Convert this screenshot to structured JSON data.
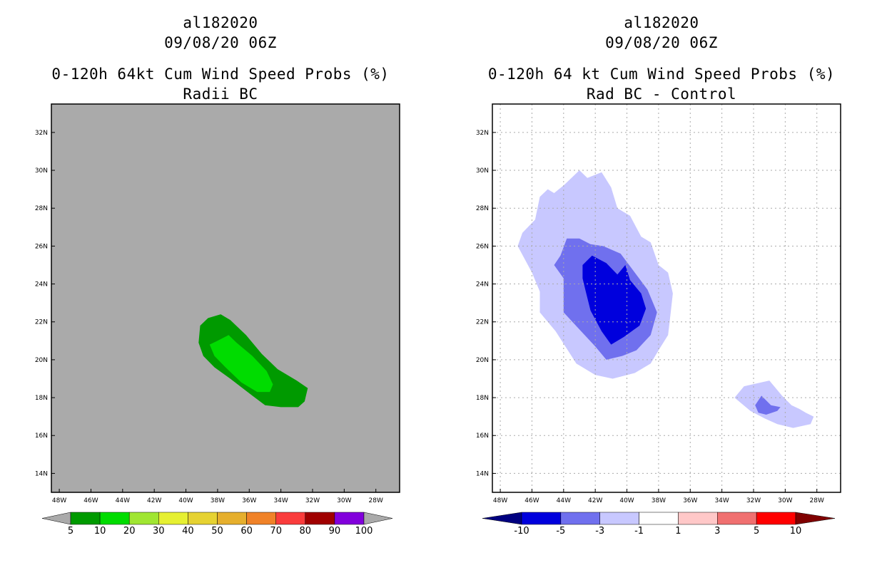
{
  "colors": {
    "left_background": "#aaaaaa",
    "left_fill_10": "#009a00",
    "left_fill_20": "#00dc00",
    "right_fill_m1": "#c8c8ff",
    "right_fill_m3": "#7070ee",
    "right_fill_m5": "#0000dd"
  },
  "chart_data": [
    {
      "type": "heatmap",
      "title_line1": "al182020",
      "title_line2": "09/08/20 06Z",
      "title_line3": "0-120h 64kt Cum Wind Speed Probs (%)",
      "title_line4": "Radii BC",
      "xlim": [
        -48.5,
        -26.5
      ],
      "ylim": [
        13,
        33.5
      ],
      "grid": false,
      "x_ticks": [
        -48,
        -46,
        -44,
        -42,
        -40,
        -38,
        -36,
        -34,
        -32,
        -30,
        -28
      ],
      "x_tick_labels": [
        "48W",
        "46W",
        "44W",
        "42W",
        "40W",
        "38W",
        "36W",
        "34W",
        "32W",
        "30W",
        "28W"
      ],
      "y_ticks": [
        14,
        16,
        18,
        20,
        22,
        24,
        26,
        28,
        30,
        32
      ],
      "y_tick_labels": [
        "14N",
        "16N",
        "18N",
        "20N",
        "22N",
        "24N",
        "26N",
        "28N",
        "30N",
        "32N"
      ],
      "colorbar": {
        "labels": [
          "5",
          "10",
          "20",
          "30",
          "40",
          "50",
          "60",
          "70",
          "80",
          "90",
          "100"
        ],
        "colors": [
          "#009a00",
          "#00dc00",
          "#a0e632",
          "#e6f032",
          "#e6d232",
          "#e6af2d",
          "#f08228",
          "#fa3c3c",
          "#a00000",
          "#8200dc"
        ],
        "low_color": "#aaaaaa",
        "high_color": "#aaaaaa"
      },
      "contours": [
        {
          "level": "10-20",
          "color_key": "left_fill_10",
          "points": [
            [
              -38.6,
              22.2
            ],
            [
              -37.8,
              22.4
            ],
            [
              -37.2,
              22.1
            ],
            [
              -36.2,
              21.3
            ],
            [
              -35.2,
              20.3
            ],
            [
              -34.2,
              19.5
            ],
            [
              -33.0,
              18.9
            ],
            [
              -32.3,
              18.5
            ],
            [
              -32.5,
              17.8
            ],
            [
              -32.9,
              17.5
            ],
            [
              -34.0,
              17.5
            ],
            [
              -35.0,
              17.6
            ],
            [
              -35.8,
              18.1
            ],
            [
              -37.2,
              19.0
            ],
            [
              -38.2,
              19.6
            ],
            [
              -38.9,
              20.2
            ],
            [
              -39.2,
              20.9
            ],
            [
              -39.1,
              21.8
            ]
          ]
        },
        {
          "level": "20-30",
          "color_key": "left_fill_20",
          "points": [
            [
              -38.0,
              21.0
            ],
            [
              -37.3,
              21.3
            ],
            [
              -36.8,
              20.9
            ],
            [
              -35.8,
              20.2
            ],
            [
              -34.9,
              19.4
            ],
            [
              -34.5,
              18.7
            ],
            [
              -34.7,
              18.3
            ],
            [
              -35.5,
              18.3
            ],
            [
              -36.5,
              18.8
            ],
            [
              -37.5,
              19.6
            ],
            [
              -38.2,
              20.2
            ],
            [
              -38.5,
              20.8
            ]
          ]
        }
      ]
    },
    {
      "type": "heatmap",
      "title_line1": "al182020",
      "title_line2": "09/08/20 06Z",
      "title_line3": "0-120h 64 kt Cum Wind Speed Probs (%)",
      "title_line4": "Rad BC - Control",
      "xlim": [
        -48.5,
        -26.5
      ],
      "ylim": [
        13,
        33.5
      ],
      "grid": true,
      "x_ticks": [
        -48,
        -46,
        -44,
        -42,
        -40,
        -38,
        -36,
        -34,
        -32,
        -30,
        -28
      ],
      "x_tick_labels": [
        "48W",
        "46W",
        "44W",
        "42W",
        "40W",
        "38W",
        "36W",
        "34W",
        "32W",
        "30W",
        "28W"
      ],
      "y_ticks": [
        14,
        16,
        18,
        20,
        22,
        24,
        26,
        28,
        30,
        32
      ],
      "y_tick_labels": [
        "14N",
        "16N",
        "18N",
        "20N",
        "22N",
        "24N",
        "26N",
        "28N",
        "30N",
        "32N"
      ],
      "colorbar": {
        "labels": [
          "-10",
          "-5",
          "-3",
          "-1",
          "1",
          "3",
          "5",
          "10"
        ],
        "colors": [
          "#0000dd",
          "#7070ee",
          "#c8c8ff",
          "#ffffff",
          "#ffc8c8",
          "#f07070",
          "#ff0000"
        ],
        "low_color": "#000080",
        "high_color": "#800000"
      },
      "contours": [
        {
          "level": "-3 to -1",
          "color_key": "right_fill_m1",
          "points": [
            [
              -45.5,
              28.6
            ],
            [
              -45.0,
              29.0
            ],
            [
              -44.6,
              28.8
            ],
            [
              -44.0,
              29.2
            ],
            [
              -43.0,
              30.0
            ],
            [
              -42.5,
              29.6
            ],
            [
              -41.6,
              29.9
            ],
            [
              -41.0,
              29.1
            ],
            [
              -40.6,
              28.0
            ],
            [
              -39.8,
              27.6
            ],
            [
              -39.1,
              26.5
            ],
            [
              -38.5,
              26.2
            ],
            [
              -38.0,
              25.0
            ],
            [
              -37.4,
              24.6
            ],
            [
              -37.1,
              23.5
            ],
            [
              -37.3,
              22.0
            ],
            [
              -37.4,
              21.3
            ],
            [
              -38.0,
              20.5
            ],
            [
              -38.5,
              19.8
            ],
            [
              -39.5,
              19.3
            ],
            [
              -40.9,
              19.0
            ],
            [
              -42.0,
              19.2
            ],
            [
              -43.2,
              19.8
            ],
            [
              -44.5,
              21.5
            ],
            [
              -45.5,
              22.5
            ],
            [
              -45.5,
              23.6
            ],
            [
              -46.0,
              24.6
            ],
            [
              -46.9,
              26.0
            ],
            [
              -46.6,
              26.7
            ],
            [
              -45.8,
              27.4
            ]
          ]
        },
        {
          "level": "-5 to -3",
          "color_key": "right_fill_m3",
          "points": [
            [
              -43.8,
              26.4
            ],
            [
              -43.0,
              26.4
            ],
            [
              -42.3,
              26.1
            ],
            [
              -41.5,
              26.0
            ],
            [
              -40.4,
              25.6
            ],
            [
              -39.5,
              24.6
            ],
            [
              -38.7,
              23.7
            ],
            [
              -38.1,
              22.5
            ],
            [
              -38.5,
              21.3
            ],
            [
              -39.4,
              20.5
            ],
            [
              -40.3,
              20.2
            ],
            [
              -41.3,
              20.0
            ],
            [
              -42.0,
              20.7
            ],
            [
              -43.0,
              21.6
            ],
            [
              -44.0,
              22.5
            ],
            [
              -44.0,
              24.3
            ],
            [
              -44.6,
              25.0
            ],
            [
              -44.2,
              25.5
            ]
          ]
        },
        {
          "level": "-10 to -5",
          "color_key": "right_fill_m5",
          "points": [
            [
              -42.8,
              25.0
            ],
            [
              -42.2,
              25.5
            ],
            [
              -41.3,
              25.1
            ],
            [
              -40.6,
              24.5
            ],
            [
              -40.1,
              25.0
            ],
            [
              -39.8,
              24.2
            ],
            [
              -39.1,
              23.5
            ],
            [
              -38.8,
              22.7
            ],
            [
              -39.2,
              21.8
            ],
            [
              -40.2,
              21.2
            ],
            [
              -41.0,
              20.8
            ],
            [
              -41.6,
              21.5
            ],
            [
              -42.3,
              22.6
            ],
            [
              -42.6,
              23.6
            ],
            [
              -42.8,
              24.3
            ]
          ]
        },
        {
          "level": "-3 to -1",
          "color_key": "right_fill_m1",
          "points": [
            [
              -33.2,
              18.0
            ],
            [
              -32.6,
              18.6
            ],
            [
              -31.0,
              18.9
            ],
            [
              -30.2,
              18.1
            ],
            [
              -29.6,
              17.6
            ],
            [
              -29.1,
              17.4
            ],
            [
              -28.7,
              17.2
            ],
            [
              -28.2,
              17.0
            ],
            [
              -28.4,
              16.6
            ],
            [
              -29.5,
              16.4
            ],
            [
              -30.5,
              16.6
            ],
            [
              -31.3,
              16.9
            ],
            [
              -32.2,
              17.3
            ]
          ]
        },
        {
          "level": "-5 to -3",
          "color_key": "right_fill_m3",
          "points": [
            [
              -31.9,
              17.6
            ],
            [
              -31.5,
              18.1
            ],
            [
              -30.9,
              17.6
            ],
            [
              -30.3,
              17.5
            ],
            [
              -30.5,
              17.3
            ],
            [
              -31.2,
              17.1
            ],
            [
              -31.7,
              17.2
            ]
          ]
        }
      ]
    }
  ]
}
